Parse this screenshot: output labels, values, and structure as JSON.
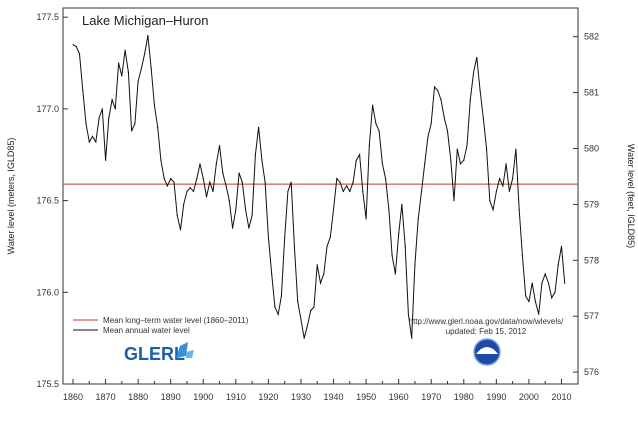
{
  "chart_data": {
    "type": "line",
    "title": "Lake Michigan–Huron",
    "ylabel_left": "Water level (meters, IGLD85)",
    "ylabel_right": "Water level (feet, IGLD85)",
    "xlim": [
      1860,
      2012
    ],
    "ylim": [
      175.5,
      177.55
    ],
    "y_ticks_left": [
      "175.5",
      "176.0",
      "176.5",
      "177.0",
      "177.5"
    ],
    "y_ticks_right": [
      "576",
      "577",
      "578",
      "579",
      "580",
      "581",
      "582"
    ],
    "x_ticks": [
      "1860",
      "1870",
      "1880",
      "1890",
      "1900",
      "1910",
      "1920",
      "1930",
      "1940",
      "1950",
      "1960",
      "1970",
      "1980",
      "1990",
      "2000",
      "2010"
    ],
    "mean_level": 176.59,
    "series": [
      {
        "name": "Mean annual water level",
        "color": "#111111",
        "x": [
          1860,
          1861,
          1862,
          1863,
          1864,
          1865,
          1866,
          1867,
          1868,
          1869,
          1870,
          1871,
          1872,
          1873,
          1874,
          1875,
          1876,
          1877,
          1878,
          1879,
          1880,
          1881,
          1882,
          1883,
          1884,
          1885,
          1886,
          1887,
          1888,
          1889,
          1890,
          1891,
          1892,
          1893,
          1894,
          1895,
          1896,
          1897,
          1898,
          1899,
          1900,
          1901,
          1902,
          1903,
          1904,
          1905,
          1906,
          1907,
          1908,
          1909,
          1910,
          1911,
          1912,
          1913,
          1914,
          1915,
          1916,
          1917,
          1918,
          1919,
          1920,
          1921,
          1922,
          1923,
          1924,
          1925,
          1926,
          1927,
          1928,
          1929,
          1930,
          1931,
          1932,
          1933,
          1934,
          1935,
          1936,
          1937,
          1938,
          1939,
          1940,
          1941,
          1942,
          1943,
          1944,
          1945,
          1946,
          1947,
          1948,
          1949,
          1950,
          1951,
          1952,
          1953,
          1954,
          1955,
          1956,
          1957,
          1958,
          1959,
          1960,
          1961,
          1962,
          1963,
          1964,
          1965,
          1966,
          1967,
          1968,
          1969,
          1970,
          1971,
          1972,
          1973,
          1974,
          1975,
          1976,
          1977,
          1978,
          1979,
          1980,
          1981,
          1982,
          1983,
          1984,
          1985,
          1986,
          1987,
          1988,
          1989,
          1990,
          1991,
          1992,
          1993,
          1994,
          1995,
          1996,
          1997,
          1998,
          1999,
          2000,
          2001,
          2002,
          2003,
          2004,
          2005,
          2006,
          2007,
          2008,
          2009,
          2010,
          2011
        ],
        "values": [
          177.35,
          177.34,
          177.3,
          177.1,
          176.92,
          176.82,
          176.85,
          176.82,
          176.95,
          177.0,
          176.72,
          176.95,
          177.05,
          177.0,
          177.25,
          177.18,
          177.32,
          177.2,
          176.88,
          176.92,
          177.15,
          177.22,
          177.3,
          177.4,
          177.22,
          177.02,
          176.9,
          176.72,
          176.62,
          176.58,
          176.62,
          176.6,
          176.42,
          176.34,
          176.48,
          176.55,
          176.57,
          176.55,
          176.62,
          176.7,
          176.62,
          176.52,
          176.6,
          176.55,
          176.7,
          176.8,
          176.65,
          176.58,
          176.5,
          176.35,
          176.45,
          176.65,
          176.6,
          176.45,
          176.35,
          176.42,
          176.75,
          176.9,
          176.72,
          176.6,
          176.3,
          176.1,
          175.92,
          175.88,
          175.98,
          176.3,
          176.55,
          176.6,
          176.25,
          175.95,
          175.85,
          175.75,
          175.82,
          175.9,
          175.92,
          176.15,
          176.05,
          176.1,
          176.25,
          176.3,
          176.45,
          176.62,
          176.6,
          176.55,
          176.58,
          176.55,
          176.6,
          176.72,
          176.75,
          176.55,
          176.4,
          176.8,
          177.02,
          176.92,
          176.88,
          176.7,
          176.62,
          176.45,
          176.2,
          176.1,
          176.32,
          176.48,
          176.25,
          175.88,
          175.75,
          176.15,
          176.4,
          176.55,
          176.7,
          176.85,
          176.92,
          177.12,
          177.1,
          177.05,
          176.95,
          176.88,
          176.72,
          176.5,
          176.78,
          176.7,
          176.72,
          176.8,
          177.05,
          177.2,
          177.28,
          177.1,
          176.95,
          176.78,
          176.5,
          176.45,
          176.55,
          176.62,
          176.58,
          176.7,
          176.55,
          176.62,
          176.78,
          176.45,
          176.2,
          175.98,
          175.95,
          176.05,
          175.95,
          175.88,
          176.05,
          176.1,
          176.05,
          175.97,
          176.0,
          176.15,
          176.25,
          176.05
        ]
      }
    ],
    "mean_line": {
      "name": "Mean long–term water level (1860–2011)",
      "color": "#c0392b"
    }
  },
  "legend": {
    "mean_long_term": "Mean long–term water level (1860–2011)",
    "mean_annual": "Mean annual water level"
  },
  "footer": {
    "url": "http://www.glerl.noaa.gov/data/now/wlevels/",
    "updated": "updated: Feb 15, 2012"
  },
  "logos": {
    "glerl": "GLERL"
  }
}
